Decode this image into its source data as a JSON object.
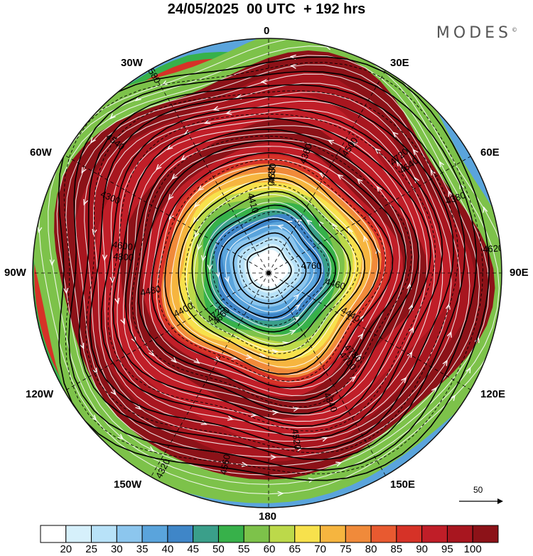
{
  "header": {
    "title": "24/05/2025  00 UTC  + 192 hrs",
    "brand": "MODES",
    "brand_mark": "©"
  },
  "map": {
    "projection": "north-polar-stereographic",
    "longitude_labels": {
      "top": "0",
      "top_left": "30W",
      "top_right": "30E",
      "upper_left": "60W",
      "upper_right": "60E",
      "left": "90W",
      "right": "90E",
      "lower_left": "120W",
      "lower_right": "120E",
      "bottom_left": "150W",
      "bottom_right": "150E",
      "bottom": "180"
    },
    "contour_labels": [
      "4760",
      "4725",
      "4680",
      "4700",
      "4600",
      "4640",
      "4560",
      "4580",
      "4460",
      "4400",
      "4360",
      "4340",
      "4300",
      "4380",
      "4320",
      "4410",
      "4440",
      "4480",
      "4500",
      "4520",
      "4540",
      "4620",
      "4660",
      "4740",
      "4780",
      "4800",
      "4720"
    ],
    "vector_scale_label": "50",
    "colors": {
      "fill_levels": [
        "#ffffff",
        "#d6f0fb",
        "#b8e2f8",
        "#8cc6ee",
        "#5aa4dc",
        "#3f86c8",
        "#3a9f8a",
        "#37b14a",
        "#7dc24a",
        "#bcd94a",
        "#f7e14c",
        "#f6b53f",
        "#f08a3a",
        "#e85a30",
        "#d63227",
        "#c01e28",
        "#a8161f",
        "#8c1218"
      ]
    }
  },
  "colorbar": {
    "ticks": [
      "20",
      "25",
      "30",
      "35",
      "40",
      "45",
      "50",
      "55",
      "60",
      "65",
      "70",
      "75",
      "80",
      "85",
      "90",
      "95",
      "100"
    ],
    "colors": [
      "#ffffff",
      "#d6f0fb",
      "#b8e2f8",
      "#8cc6ee",
      "#5aa4dc",
      "#3f86c8",
      "#3a9f8a",
      "#37b14a",
      "#7dc24a",
      "#bcd94a",
      "#f7e14c",
      "#f6b53f",
      "#f08a3a",
      "#e85a30",
      "#d63227",
      "#c01e28",
      "#a8161f",
      "#8c1218"
    ]
  }
}
